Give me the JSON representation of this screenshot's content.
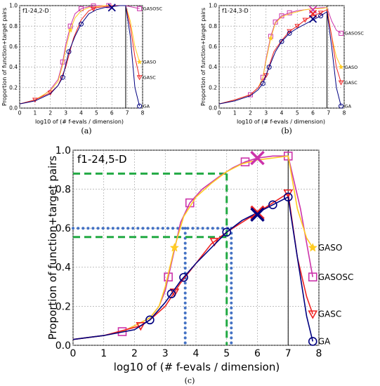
{
  "captions": {
    "a": "(a)",
    "b": "(b)",
    "c": "(c)"
  },
  "colors": {
    "GASOSC": "#cc33aa",
    "GASO": "#ffcc22",
    "GASC": "#ee2222",
    "GA": "#000080",
    "reference_dots": "#4472c4",
    "reference_dash": "#22aa44",
    "cross_blue": "#000080"
  },
  "chart_data": [
    {
      "type": "line",
      "title": "f1-24,2-D",
      "xlabel": "log10 of (# f-evals / dimension)",
      "ylabel": "Proportion of function+target pairs",
      "xlim": [
        0,
        8
      ],
      "ylim": [
        0,
        1
      ],
      "x_ticks": [
        "0",
        "1",
        "2",
        "3",
        "4",
        "5",
        "6",
        "7",
        "8"
      ],
      "y_ticks": [
        "0.0",
        "0.2",
        "0.4",
        "0.6",
        "0.8",
        "1.0"
      ],
      "grid": true,
      "budget_line_x": 6.9,
      "series": [
        {
          "name": "GASOSC",
          "marker": "square",
          "x": [
            0,
            1,
            1.5,
            2,
            2.5,
            2.8,
            3,
            3.3,
            3.6,
            4,
            4.5,
            5,
            5.5,
            6,
            6.5,
            6.9,
            7.2,
            7.5,
            7.8
          ],
          "y": [
            0.04,
            0.08,
            0.12,
            0.18,
            0.28,
            0.45,
            0.62,
            0.8,
            0.92,
            0.97,
            0.99,
            1.0,
            1.0,
            1.0,
            1.0,
            1.0,
            0.99,
            0.98,
            0.97
          ],
          "end_label": "GASOSC",
          "marker_x": [
            2.8,
            3.3,
            4.0,
            4.8,
            5.8,
            7.8
          ]
        },
        {
          "name": "GASO",
          "marker": "star",
          "x": [
            0,
            1,
            2,
            2.5,
            2.8,
            3,
            3.3,
            3.6,
            4,
            4.5,
            5,
            5.5,
            6,
            6.5,
            6.9,
            7.2,
            7.5,
            7.8
          ],
          "y": [
            0.04,
            0.08,
            0.17,
            0.26,
            0.42,
            0.58,
            0.76,
            0.88,
            0.95,
            0.98,
            0.99,
            1.0,
            1.0,
            1.0,
            1.0,
            0.85,
            0.6,
            0.45
          ],
          "end_label": "GASO",
          "marker_x": [
            3.3,
            7.8
          ]
        },
        {
          "name": "GASC",
          "marker": "triangle",
          "x": [
            0,
            1,
            2,
            2.5,
            3,
            3.5,
            4,
            4.5,
            5,
            5.5,
            6,
            6.5,
            6.9,
            7.2,
            7.5,
            7.8
          ],
          "y": [
            0.04,
            0.08,
            0.15,
            0.22,
            0.4,
            0.68,
            0.86,
            0.95,
            0.98,
            0.99,
            1.0,
            1.0,
            1.0,
            0.8,
            0.5,
            0.3
          ],
          "end_label": "GASC",
          "marker_x": [
            1.0,
            2.0,
            4.8,
            7.8
          ]
        },
        {
          "name": "GA",
          "marker": "circle",
          "x": [
            0,
            1,
            2,
            2.5,
            2.8,
            3.2,
            3.6,
            4,
            4.5,
            5,
            5.5,
            6,
            6.5,
            6.9,
            7.2,
            7.5,
            7.8
          ],
          "y": [
            0.04,
            0.07,
            0.14,
            0.22,
            0.3,
            0.55,
            0.7,
            0.82,
            0.92,
            0.96,
            0.98,
            0.99,
            1.0,
            1.0,
            0.7,
            0.2,
            0.02
          ],
          "end_label": "GA",
          "marker_x": [
            2.8,
            3.2,
            4.0,
            7.8
          ]
        }
      ],
      "crosses": [
        {
          "x": 6.0,
          "y": 0.98,
          "color": "cross_blue"
        }
      ]
    },
    {
      "type": "line",
      "title": "f1-24,3-D",
      "xlabel": "log10 of (# f-evals / dimension)",
      "ylabel": "Proportion of function+target pairs",
      "xlim": [
        0,
        8
      ],
      "ylim": [
        0,
        1
      ],
      "x_ticks": [
        "0",
        "1",
        "2",
        "3",
        "4",
        "5",
        "6",
        "7",
        "8"
      ],
      "y_ticks": [
        "0.0",
        "0.2",
        "0.4",
        "0.6",
        "0.8",
        "1.0"
      ],
      "grid": true,
      "budget_line_x": 6.9,
      "series": [
        {
          "name": "GASOSC",
          "marker": "square",
          "x": [
            0,
            1,
            2,
            2.5,
            2.8,
            3,
            3.3,
            3.6,
            4,
            4.5,
            5,
            5.5,
            6,
            6.5,
            6.9,
            7.2,
            7.5,
            7.8
          ],
          "y": [
            0.04,
            0.08,
            0.13,
            0.2,
            0.3,
            0.48,
            0.7,
            0.84,
            0.9,
            0.93,
            0.95,
            0.96,
            0.97,
            0.98,
            0.98,
            0.85,
            0.76,
            0.73
          ],
          "end_label": "GASOSC",
          "marker_x": [
            2.0,
            2.8,
            3.3,
            3.6,
            4.0,
            4.5,
            7.8
          ]
        },
        {
          "name": "GASO",
          "marker": "star",
          "x": [
            0,
            1,
            2,
            2.5,
            2.8,
            3,
            3.3,
            3.6,
            4,
            4.5,
            5,
            5.5,
            6,
            6.5,
            6.9,
            7.2,
            7.5,
            7.8
          ],
          "y": [
            0.04,
            0.08,
            0.13,
            0.2,
            0.3,
            0.46,
            0.68,
            0.83,
            0.89,
            0.92,
            0.94,
            0.96,
            0.97,
            0.97,
            0.98,
            0.7,
            0.5,
            0.4
          ],
          "end_label": "GASO",
          "marker_x": [
            3.3,
            7.8
          ]
        },
        {
          "name": "GASC",
          "marker": "triangle",
          "x": [
            0,
            1,
            2,
            2.5,
            3,
            3.5,
            4,
            4.5,
            5,
            5.5,
            6,
            6.5,
            6.9,
            7.2,
            7.5,
            7.8
          ],
          "y": [
            0.04,
            0.08,
            0.13,
            0.2,
            0.32,
            0.55,
            0.66,
            0.75,
            0.8,
            0.86,
            0.9,
            0.93,
            0.96,
            0.7,
            0.4,
            0.25
          ],
          "end_label": "GASC",
          "marker_x": [
            3.0,
            4.5,
            5.0,
            5.5,
            6.5,
            7.8
          ]
        },
        {
          "name": "GA",
          "marker": "circle",
          "x": [
            0,
            1,
            2,
            2.5,
            2.8,
            3.2,
            3.6,
            4,
            4.5,
            5,
            5.5,
            6,
            6.5,
            6.9,
            7.2,
            7.5,
            7.8
          ],
          "y": [
            0.04,
            0.07,
            0.12,
            0.18,
            0.24,
            0.4,
            0.55,
            0.65,
            0.73,
            0.78,
            0.82,
            0.86,
            0.9,
            0.94,
            0.6,
            0.2,
            0.02
          ],
          "end_label": "GA",
          "marker_x": [
            2.8,
            3.2,
            4.0,
            4.5,
            6.5,
            7.8
          ]
        }
      ],
      "crosses": [
        {
          "x": 6.0,
          "y": 0.96,
          "color": "GASOSC"
        },
        {
          "x": 6.0,
          "y": 0.92,
          "color": "GASC"
        },
        {
          "x": 6.0,
          "y": 0.87,
          "color": "cross_blue"
        }
      ]
    },
    {
      "type": "line",
      "title": "f1-24,5-D",
      "xlabel": "log10 of (# f-evals / dimension)",
      "ylabel": "Proportion of function+target pairs",
      "xlim": [
        0,
        8
      ],
      "ylim": [
        0,
        1
      ],
      "x_ticks": [
        "0",
        "1",
        "2",
        "3",
        "4",
        "5",
        "6",
        "7",
        "8"
      ],
      "y_ticks": [
        "0.0",
        "0.2",
        "0.4",
        "0.6",
        "0.8",
        "1.0"
      ],
      "grid": true,
      "budget_line_x": 7.0,
      "series": [
        {
          "name": "GASOSC",
          "marker": "square",
          "x": [
            0,
            1,
            1.6,
            2,
            2.5,
            2.8,
            3,
            3.2,
            3.5,
            3.8,
            4.2,
            4.8,
            5.2,
            5.6,
            6,
            6.5,
            7,
            7.4,
            7.8
          ],
          "y": [
            0.03,
            0.05,
            0.07,
            0.1,
            0.14,
            0.2,
            0.28,
            0.42,
            0.63,
            0.73,
            0.8,
            0.87,
            0.91,
            0.94,
            0.96,
            0.97,
            0.97,
            0.7,
            0.35
          ],
          "end_label": "GASOSC",
          "marker_x": [
            1.6,
            3.1,
            3.8,
            5.6,
            7.0,
            7.8
          ]
        },
        {
          "name": "GASO",
          "marker": "star",
          "x": [
            0,
            1,
            1.6,
            2,
            2.5,
            2.8,
            3,
            3.3,
            3.6,
            4,
            4.5,
            5,
            5.5,
            6,
            6.5,
            7,
            7.3,
            7.6,
            7.8
          ],
          "y": [
            0.03,
            0.05,
            0.07,
            0.1,
            0.14,
            0.2,
            0.3,
            0.5,
            0.66,
            0.76,
            0.83,
            0.89,
            0.93,
            0.95,
            0.96,
            0.97,
            0.7,
            0.55,
            0.5
          ],
          "end_label": "GASO",
          "marker_x": [
            3.3,
            7.8
          ]
        },
        {
          "name": "GASC",
          "marker": "triangle",
          "x": [
            0,
            1,
            2.2,
            2.5,
            3,
            3.5,
            4,
            4.5,
            5,
            5.5,
            6,
            6.5,
            7,
            7.3,
            7.6,
            7.8
          ],
          "y": [
            0.03,
            0.05,
            0.1,
            0.13,
            0.2,
            0.32,
            0.42,
            0.52,
            0.58,
            0.63,
            0.68,
            0.73,
            0.78,
            0.45,
            0.25,
            0.16
          ],
          "end_label": "GASC",
          "marker_x": [
            2.2,
            3.3,
            4.6,
            7.0,
            7.8
          ]
        },
        {
          "name": "GA",
          "marker": "circle",
          "x": [
            0,
            1,
            2,
            2.5,
            3,
            3.5,
            4,
            4.5,
            5,
            5.5,
            6,
            6.5,
            7,
            7.3,
            7.6,
            7.8
          ],
          "y": [
            0.03,
            0.05,
            0.08,
            0.13,
            0.22,
            0.33,
            0.42,
            0.5,
            0.58,
            0.64,
            0.68,
            0.72,
            0.76,
            0.45,
            0.15,
            0.02
          ],
          "end_label": "GA",
          "marker_x": [
            2.5,
            3.2,
            3.6,
            5.0,
            6.5,
            7.0,
            7.8
          ]
        }
      ],
      "crosses": [
        {
          "x": 6.0,
          "y": 0.96,
          "color": "GASOSC"
        },
        {
          "x": 6.0,
          "y": 0.68,
          "color": "GASC"
        },
        {
          "x": 6.0,
          "y": 0.67,
          "color": "cross_blue"
        }
      ],
      "reference_lines": {
        "dotted_blue": {
          "y": 0.6,
          "x": [
            3.65,
            5.15
          ]
        },
        "dashed_green": {
          "y": [
            0.88,
            0.555
          ],
          "x": [
            5.0
          ]
        }
      }
    }
  ]
}
